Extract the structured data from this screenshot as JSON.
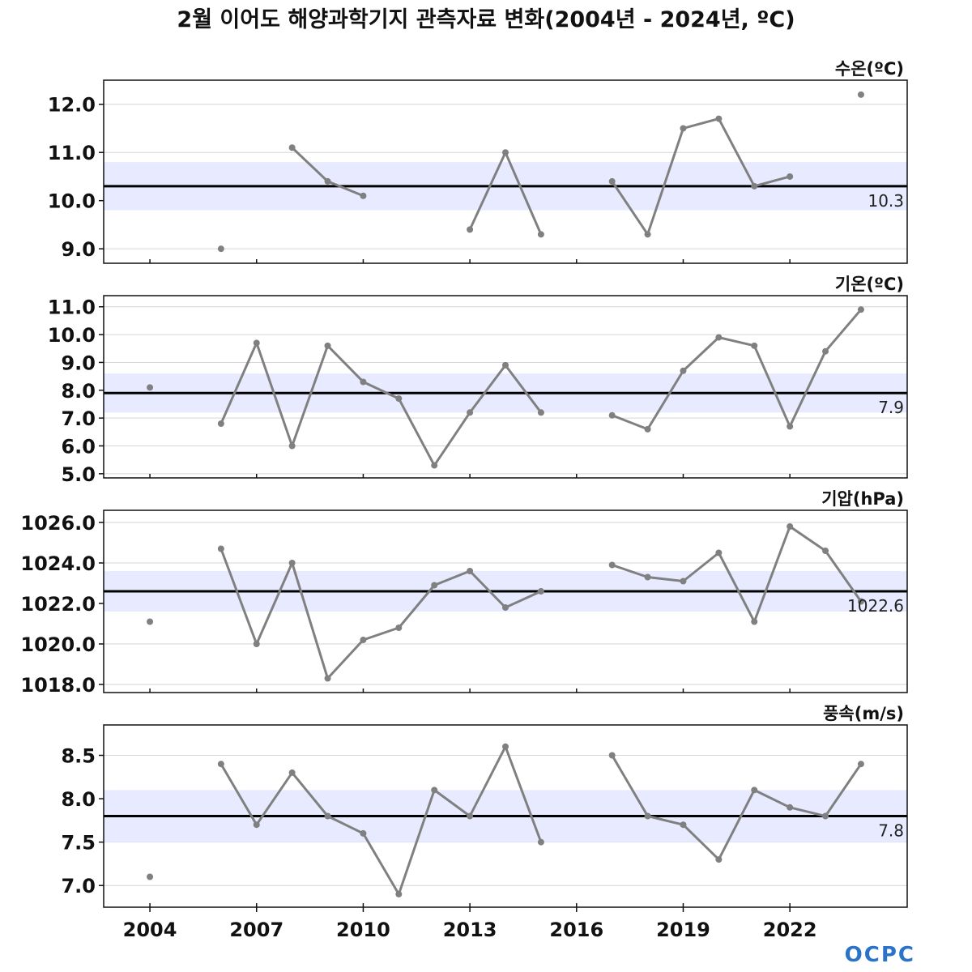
{
  "title": "2월 이어도 해양과학기지 관측자료 변화(2004년 - 2024년, ºC)",
  "logo_text": "OCPC",
  "colors": {
    "line": "#808080",
    "mean_line": "#000000",
    "band": "#e8ebff",
    "grid": "#d6d6d6"
  },
  "chart_data": [
    {
      "type": "line",
      "label": "수온(ºC)",
      "x": [
        2004,
        2005,
        2006,
        2007,
        2008,
        2009,
        2010,
        2011,
        2012,
        2013,
        2014,
        2015,
        2016,
        2017,
        2018,
        2019,
        2020,
        2021,
        2022,
        2023,
        2024
      ],
      "values": [
        null,
        null,
        9.0,
        null,
        11.1,
        10.4,
        10.1,
        null,
        null,
        9.4,
        11.0,
        9.3,
        null,
        10.4,
        9.3,
        11.5,
        11.7,
        10.3,
        10.5,
        null,
        12.2
      ],
      "mean": 10.3,
      "mean_label": "10.3",
      "band": [
        9.8,
        10.8
      ],
      "ylim": [
        8.7,
        12.5
      ],
      "yticks": [
        9.0,
        10.0,
        11.0,
        12.0
      ],
      "ytick_labels": [
        "9.0",
        "10.0",
        "11.0",
        "12.0"
      ]
    },
    {
      "type": "line",
      "label": "기온(ºC)",
      "x": [
        2004,
        2005,
        2006,
        2007,
        2008,
        2009,
        2010,
        2011,
        2012,
        2013,
        2014,
        2015,
        2016,
        2017,
        2018,
        2019,
        2020,
        2021,
        2022,
        2023,
        2024
      ],
      "values": [
        8.1,
        null,
        6.8,
        9.7,
        6.0,
        9.6,
        8.3,
        7.7,
        5.3,
        7.2,
        8.9,
        7.2,
        null,
        7.1,
        6.6,
        8.7,
        9.9,
        9.6,
        6.7,
        9.4,
        10.9
      ],
      "mean": 7.9,
      "mean_label": "7.9",
      "band": [
        7.2,
        8.6
      ],
      "ylim": [
        4.85,
        11.4
      ],
      "yticks": [
        5.0,
        6.0,
        7.0,
        8.0,
        9.0,
        10.0,
        11.0
      ],
      "ytick_labels": [
        "5.0",
        "6.0",
        "7.0",
        "8.0",
        "9.0",
        "10.0",
        "11.0"
      ]
    },
    {
      "type": "line",
      "label": "기압(hPa)",
      "x": [
        2004,
        2005,
        2006,
        2007,
        2008,
        2009,
        2010,
        2011,
        2012,
        2013,
        2014,
        2015,
        2016,
        2017,
        2018,
        2019,
        2020,
        2021,
        2022,
        2023,
        2024
      ],
      "values": [
        1021.1,
        null,
        1024.7,
        1020.0,
        1024.0,
        1018.3,
        1020.2,
        1020.8,
        1022.9,
        1023.6,
        1021.8,
        1022.6,
        null,
        1023.9,
        1023.3,
        1023.1,
        1024.5,
        1021.1,
        1025.8,
        1024.6,
        1022.1
      ],
      "mean": 1022.6,
      "mean_label": "1022.6",
      "band": [
        1021.6,
        1023.6
      ],
      "ylim": [
        1017.6,
        1026.6
      ],
      "yticks": [
        1018.0,
        1020.0,
        1022.0,
        1024.0,
        1026.0
      ],
      "ytick_labels": [
        "1018.0",
        "1020.0",
        "1022.0",
        "1024.0",
        "1026.0"
      ]
    },
    {
      "type": "line",
      "label": "풍속(m/s)",
      "x": [
        2004,
        2005,
        2006,
        2007,
        2008,
        2009,
        2010,
        2011,
        2012,
        2013,
        2014,
        2015,
        2016,
        2017,
        2018,
        2019,
        2020,
        2021,
        2022,
        2023,
        2024
      ],
      "values": [
        7.1,
        null,
        8.4,
        7.7,
        8.3,
        7.8,
        7.6,
        6.9,
        8.1,
        7.8,
        8.6,
        7.5,
        null,
        8.5,
        7.8,
        7.7,
        7.3,
        8.1,
        7.9,
        7.8,
        8.4
      ],
      "mean": 7.8,
      "mean_label": "7.8",
      "band": [
        7.5,
        8.1
      ],
      "ylim": [
        6.75,
        8.85
      ],
      "yticks": [
        7.0,
        7.5,
        8.0,
        8.5
      ],
      "ytick_labels": [
        "7.0",
        "7.5",
        "8.0",
        "8.5"
      ]
    }
  ],
  "xaxis": {
    "ticks": [
      2004,
      2007,
      2010,
      2013,
      2016,
      2019,
      2022
    ],
    "tick_labels": [
      "2004",
      "2007",
      "2010",
      "2013",
      "2016",
      "2019",
      "2022"
    ],
    "xlim": [
      2002.7,
      2025.3
    ]
  }
}
